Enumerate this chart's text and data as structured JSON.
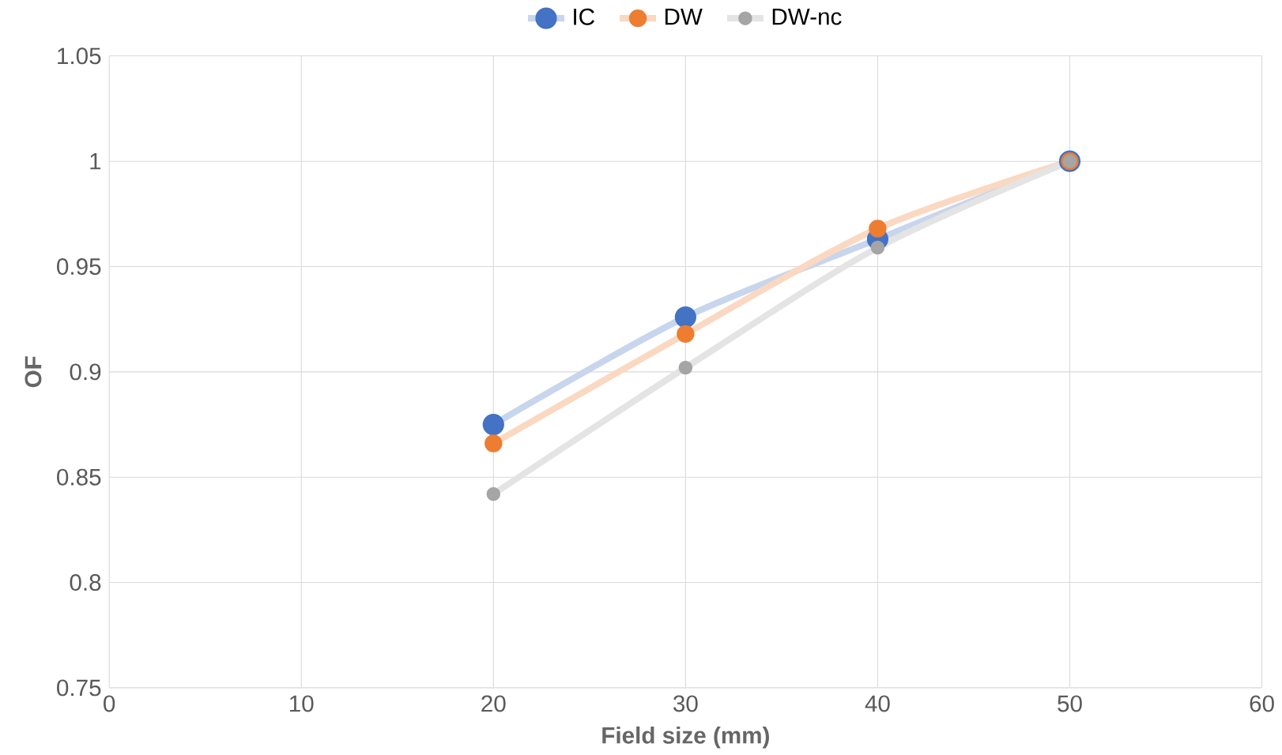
{
  "chart_data": {
    "type": "line",
    "xlabel": "Field size (mm)",
    "ylabel": "OF",
    "x": [
      20,
      30,
      40,
      50
    ],
    "series": [
      {
        "name": "IC",
        "color": "#4472c4",
        "values": [
          0.875,
          0.926,
          0.963,
          1
        ]
      },
      {
        "name": "DW",
        "color": "#ed7d31",
        "values": [
          0.866,
          0.918,
          0.968,
          1
        ]
      },
      {
        "name": "DW-nc",
        "color": "#a5a5a5",
        "values": [
          0.842,
          0.902,
          0.959,
          1
        ]
      }
    ],
    "xlim": [
      0,
      60
    ],
    "xticks": [
      0,
      10,
      20,
      30,
      40,
      50,
      60
    ],
    "ylim": [
      0.75,
      1.05
    ],
    "yticks": [
      0.75,
      0.8,
      0.85,
      0.9,
      0.95,
      1,
      1.05
    ],
    "grid": true,
    "legend": "top",
    "marker": "circle"
  }
}
